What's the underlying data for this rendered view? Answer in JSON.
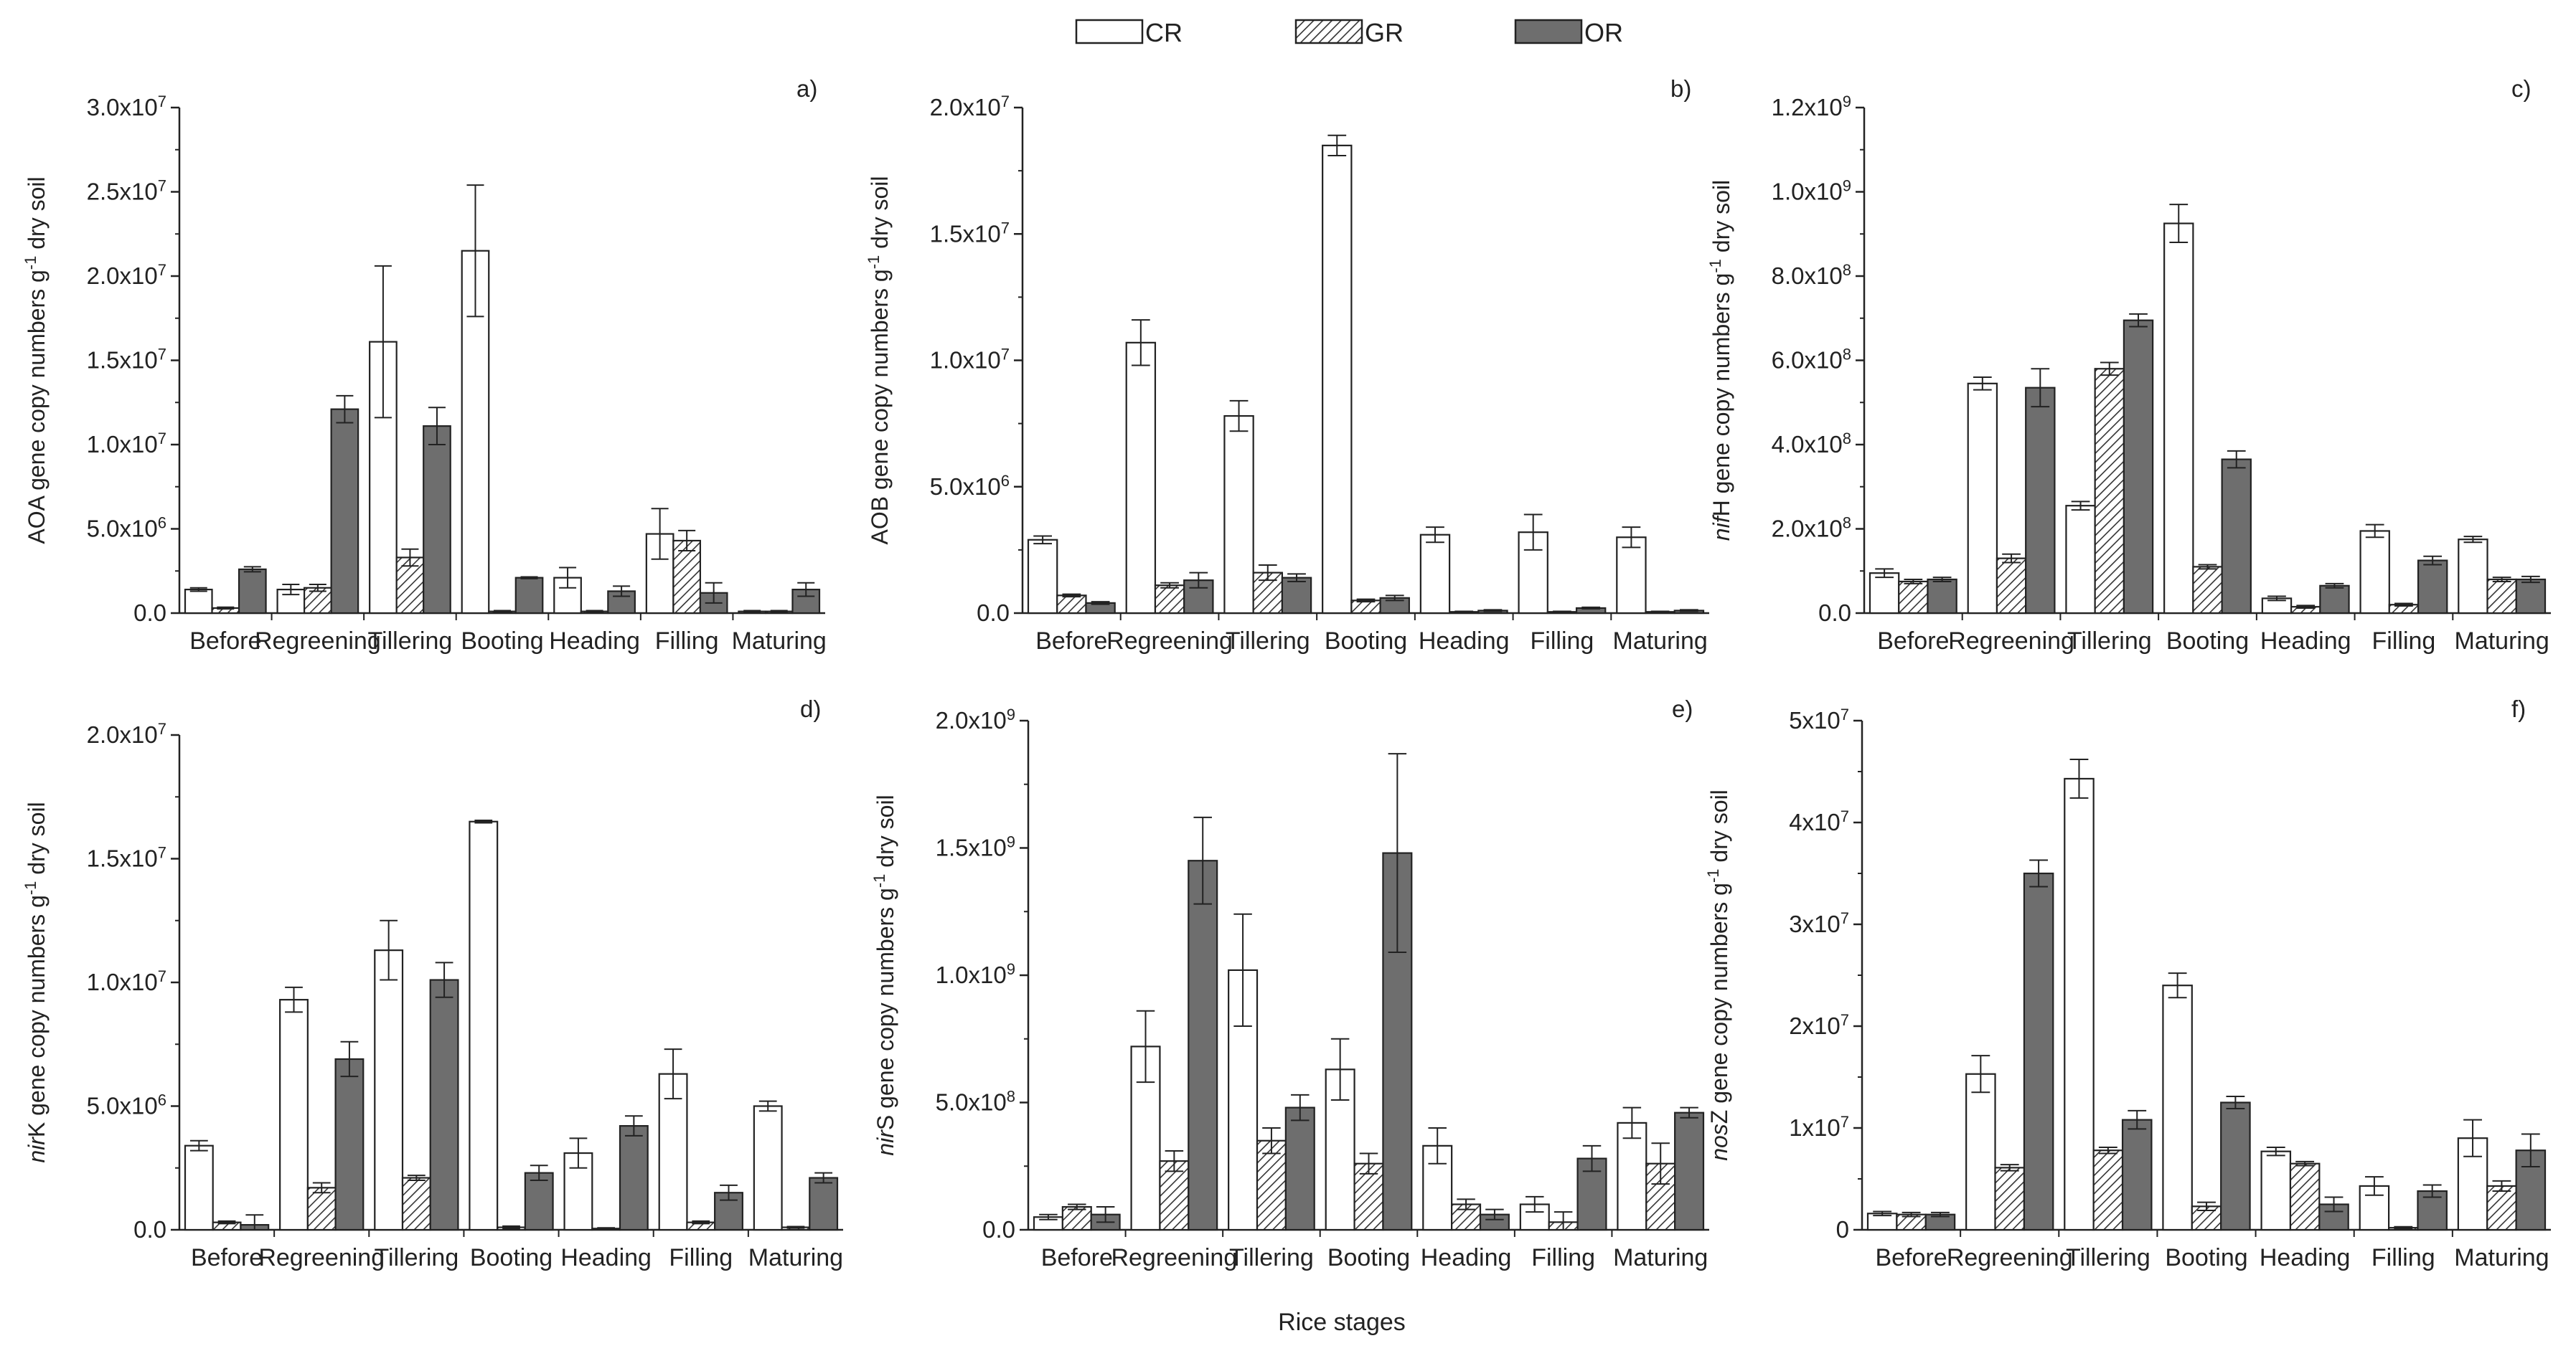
{
  "legend": [
    {
      "name": "CR",
      "style": "white"
    },
    {
      "name": "GR",
      "style": "hatch"
    },
    {
      "name": "OR",
      "style": "gray"
    }
  ],
  "common_xlabel": "Rice stages",
  "colors": {
    "axis": "#222222",
    "white_fill": "#ffffff",
    "gray_fill": "#6e6e6e",
    "hatch_stroke": "#333333"
  },
  "chart_data": [
    {
      "type": "bar",
      "panel": "a)",
      "ylabel": "AOA gene copy numbers g<sup>-1</sup> dry soil",
      "categories": [
        "Before",
        "Regreening",
        "Tillering",
        "Booting",
        "Heading",
        "Filling",
        "Maturing"
      ],
      "ylim": [
        0,
        30000000
      ],
      "yticks": [
        {
          "value": 0,
          "label": "0.0"
        },
        {
          "value": 5000000,
          "label": "5.0x10<sup>6</sup>"
        },
        {
          "value": 10000000,
          "label": "1.0x10<sup>7</sup>"
        },
        {
          "value": 15000000,
          "label": "1.5x10<sup>7</sup>"
        },
        {
          "value": 20000000,
          "label": "2.0x10<sup>7</sup>"
        },
        {
          "value": 25000000,
          "label": "2.5x10<sup>7</sup>"
        },
        {
          "value": 30000000,
          "label": "3.0x10<sup>7</sup>"
        }
      ],
      "series": [
        {
          "name": "CR",
          "values": [
            1400000,
            1400000,
            16100000,
            21500000,
            2100000,
            4700000,
            100000
          ],
          "errors": [
            100000,
            300000,
            4500000,
            3900000,
            600000,
            1500000,
            50000
          ]
        },
        {
          "name": "GR",
          "values": [
            300000,
            1500000,
            3300000,
            100000,
            100000,
            4300000,
            100000
          ],
          "errors": [
            50000,
            200000,
            500000,
            50000,
            50000,
            600000,
            50000
          ]
        },
        {
          "name": "OR",
          "values": [
            2600000,
            12100000,
            11100000,
            2100000,
            1300000,
            1200000,
            1400000
          ],
          "errors": [
            150000,
            800000,
            1100000,
            50000,
            300000,
            600000,
            400000
          ]
        }
      ]
    },
    {
      "type": "bar",
      "panel": "b)",
      "ylabel": "AOB gene copy numbers g<sup>-1</sup> dry soil",
      "categories": [
        "Before",
        "Regreening",
        "Tillering",
        "Booting",
        "Heading",
        "Filling",
        "Maturing"
      ],
      "ylim": [
        0,
        20000000
      ],
      "yticks": [
        {
          "value": 0,
          "label": "0.0"
        },
        {
          "value": 5000000,
          "label": "5.0x10<sup>6</sup>"
        },
        {
          "value": 10000000,
          "label": "1.0x10<sup>7</sup>"
        },
        {
          "value": 15000000,
          "label": "1.5x10<sup>7</sup>"
        },
        {
          "value": 20000000,
          "label": "2.0x10<sup>7</sup>"
        }
      ],
      "series": [
        {
          "name": "CR",
          "values": [
            2900000,
            10700000,
            7800000,
            18500000,
            3100000,
            3200000,
            3000000
          ],
          "errors": [
            150000,
            900000,
            600000,
            400000,
            300000,
            700000,
            400000
          ]
        },
        {
          "name": "GR",
          "values": [
            700000,
            1100000,
            1600000,
            500000,
            50000,
            50000,
            50000
          ],
          "errors": [
            50000,
            100000,
            300000,
            50000,
            20000,
            20000,
            20000
          ]
        },
        {
          "name": "OR",
          "values": [
            400000,
            1300000,
            1400000,
            600000,
            100000,
            200000,
            100000
          ],
          "errors": [
            50000,
            300000,
            150000,
            100000,
            30000,
            30000,
            30000
          ]
        }
      ]
    },
    {
      "type": "bar",
      "panel": "c)",
      "ylabel": "<i>nif</i>H gene copy numbers g<sup>-1</sup> dry soil",
      "categories": [
        "Before",
        "Regreening",
        "Tillering",
        "Booting",
        "Heading",
        "Filling",
        "Maturing"
      ],
      "ylim": [
        0,
        1200000000
      ],
      "yticks": [
        {
          "value": 0,
          "label": "0.0"
        },
        {
          "value": 200000000,
          "label": "2.0x10<sup>8</sup>"
        },
        {
          "value": 400000000,
          "label": "4.0x10<sup>8</sup>"
        },
        {
          "value": 600000000,
          "label": "6.0x10<sup>8</sup>"
        },
        {
          "value": 800000000,
          "label": "8.0x10<sup>8</sup>"
        },
        {
          "value": 1000000000,
          "label": "1.0x10<sup>9</sup>"
        },
        {
          "value": 1200000000,
          "label": "1.2x10<sup>9</sup>"
        }
      ],
      "series": [
        {
          "name": "CR",
          "values": [
            95000000,
            545000000,
            255000000,
            925000000,
            35000000,
            195000000,
            175000000
          ],
          "errors": [
            10000000,
            15000000,
            10000000,
            45000000,
            5000000,
            15000000,
            7000000
          ]
        },
        {
          "name": "GR",
          "values": [
            75000000,
            130000000,
            580000000,
            110000000,
            15000000,
            20000000,
            80000000
          ],
          "errors": [
            5000000,
            10000000,
            15000000,
            5000000,
            3000000,
            3000000,
            5000000
          ]
        },
        {
          "name": "OR",
          "values": [
            80000000,
            535000000,
            695000000,
            365000000,
            65000000,
            125000000,
            80000000
          ],
          "errors": [
            5000000,
            45000000,
            15000000,
            20000000,
            5000000,
            10000000,
            7000000
          ]
        }
      ]
    },
    {
      "type": "bar",
      "panel": "d)",
      "ylabel": "<i>nir</i>K gene copy numbers g<sup>-1</sup> dry soil",
      "categories": [
        "Before",
        "Regreening",
        "Tillering",
        "Booting",
        "Heading",
        "Filling",
        "Maturing"
      ],
      "ylim": [
        0,
        20000000
      ],
      "yticks": [
        {
          "value": 0,
          "label": "0.0"
        },
        {
          "value": 5000000,
          "label": "5.0x10<sup>6</sup>"
        },
        {
          "value": 10000000,
          "label": "1.0x10<sup>7</sup>"
        },
        {
          "value": 15000000,
          "label": "1.5x10<sup>7</sup>"
        },
        {
          "value": 20000000,
          "label": "2.0x10<sup>7</sup>"
        }
      ],
      "series": [
        {
          "name": "CR",
          "values": [
            3400000,
            9300000,
            11300000,
            16500000,
            3100000,
            6300000,
            5000000
          ],
          "errors": [
            200000,
            500000,
            1200000,
            50000,
            600000,
            1000000,
            200000
          ]
        },
        {
          "name": "GR",
          "values": [
            300000,
            1700000,
            2100000,
            100000,
            50000,
            300000,
            100000
          ],
          "errors": [
            50000,
            200000,
            100000,
            50000,
            30000,
            50000,
            30000
          ]
        },
        {
          "name": "OR",
          "values": [
            200000,
            6900000,
            10100000,
            2300000,
            4200000,
            1500000,
            2100000
          ],
          "errors": [
            400000,
            700000,
            700000,
            300000,
            400000,
            300000,
            200000
          ]
        }
      ]
    },
    {
      "type": "bar",
      "panel": "e)",
      "ylabel": "<i>nir</i>S gene copy numbers g<sup>-1</sup> dry soil",
      "categories": [
        "Before",
        "Regreening",
        "Tillering",
        "Booting",
        "Heading",
        "Filling",
        "Maturing"
      ],
      "ylim": [
        0,
        2000000000
      ],
      "yticks": [
        {
          "value": 0,
          "label": "0.0"
        },
        {
          "value": 500000000,
          "label": "5.0x10<sup>8</sup>"
        },
        {
          "value": 1000000000,
          "label": "1.0x10<sup>9</sup>"
        },
        {
          "value": 1500000000,
          "label": "1.5x10<sup>9</sup>"
        },
        {
          "value": 2000000000,
          "label": "2.0x10<sup>9</sup>"
        }
      ],
      "series": [
        {
          "name": "CR",
          "values": [
            50000000,
            720000000,
            1020000000,
            630000000,
            330000000,
            100000000,
            420000000
          ],
          "errors": [
            10000000,
            140000000,
            220000000,
            120000000,
            70000000,
            30000000,
            60000000
          ]
        },
        {
          "name": "GR",
          "values": [
            90000000,
            270000000,
            350000000,
            260000000,
            100000000,
            30000000,
            260000000
          ],
          "errors": [
            10000000,
            40000000,
            50000000,
            40000000,
            20000000,
            40000000,
            80000000
          ]
        },
        {
          "name": "OR",
          "values": [
            60000000,
            1450000000,
            480000000,
            1480000000,
            60000000,
            280000000,
            460000000
          ],
          "errors": [
            30000000,
            170000000,
            50000000,
            390000000,
            20000000,
            50000000,
            20000000
          ]
        }
      ]
    },
    {
      "type": "bar",
      "panel": "f)",
      "ylabel": "<i>nos</i>Z gene copy numbers g<sup>-1</sup> dry soil",
      "categories": [
        "Before",
        "Regreening",
        "Tillering",
        "Booting",
        "Heading",
        "Filling",
        "Maturing"
      ],
      "ylim": [
        0,
        50000000
      ],
      "yticks": [
        {
          "value": 0,
          "label": "0"
        },
        {
          "value": 10000000,
          "label": "1x10<sup>7</sup>"
        },
        {
          "value": 20000000,
          "label": "2x10<sup>7</sup>"
        },
        {
          "value": 30000000,
          "label": "3x10<sup>7</sup>"
        },
        {
          "value": 40000000,
          "label": "4x10<sup>7</sup>"
        },
        {
          "value": 50000000,
          "label": "5x10<sup>7</sup>"
        }
      ],
      "series": [
        {
          "name": "CR",
          "values": [
            1600000,
            15300000,
            44300000,
            24000000,
            7700000,
            4300000,
            9000000
          ],
          "errors": [
            200000,
            1800000,
            1900000,
            1200000,
            400000,
            900000,
            1800000
          ]
        },
        {
          "name": "GR",
          "values": [
            1500000,
            6100000,
            7800000,
            2300000,
            6500000,
            200000,
            4300000
          ],
          "errors": [
            200000,
            300000,
            300000,
            400000,
            200000,
            100000,
            500000
          ]
        },
        {
          "name": "OR",
          "values": [
            1500000,
            35000000,
            10800000,
            12500000,
            2500000,
            3800000,
            7800000
          ],
          "errors": [
            200000,
            1300000,
            900000,
            600000,
            700000,
            600000,
            1600000
          ]
        }
      ]
    }
  ]
}
